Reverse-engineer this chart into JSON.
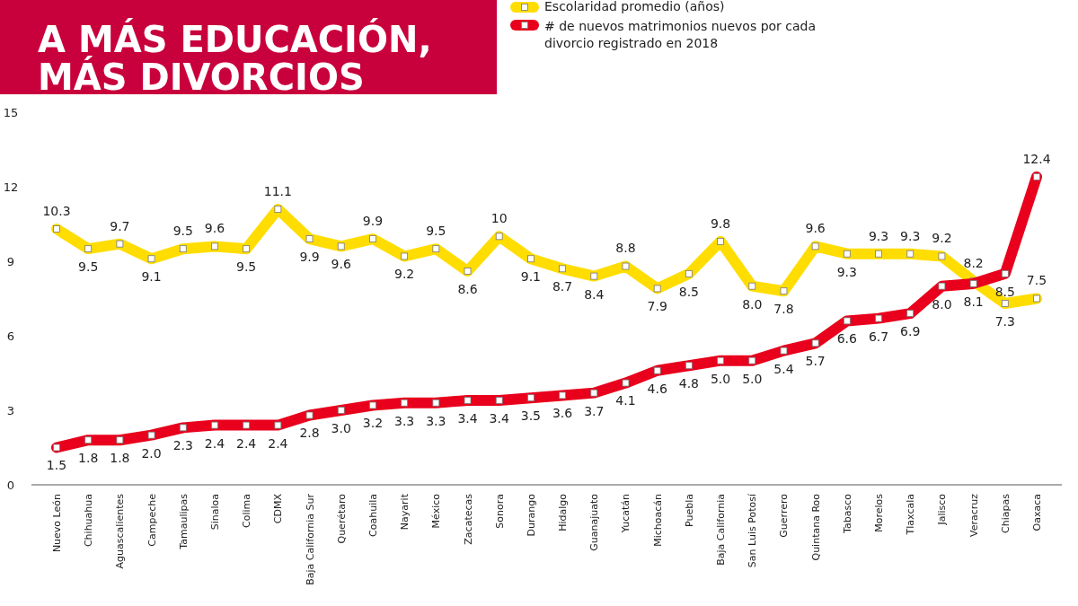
{
  "chart_data": {
    "type": "line",
    "title": "A MÁS EDUCACIÓN, MÁS DIVORCIOS",
    "categories": [
      "Nuevo León",
      "Chihuahua",
      "Aguascalientes",
      "Campeche",
      "Tamaulipas",
      "Sinaloa",
      "Colima",
      "CDMX",
      "Baja California Sur",
      "Querétaro",
      "Coahuila",
      "Nayarit",
      "México",
      "Zacatecas",
      "Sonora",
      "Durango",
      "Hidalgo",
      "Guanajuato",
      "Yucatán",
      "Michoacán",
      "Puebla",
      "Baja California",
      "San Luis Potosí",
      "Guerrero",
      "Quintana Roo",
      "Tabasco",
      "Morelos",
      "Tlaxcala",
      "Jalisco",
      "Veracruz",
      "Chiapas",
      "Oaxaca"
    ],
    "series": [
      {
        "name": "Escolaridad promedio (años)",
        "color": "#ffdd00",
        "values": [
          10.3,
          9.5,
          9.7,
          9.1,
          9.5,
          9.6,
          9.5,
          11.1,
          9.9,
          9.6,
          9.9,
          9.2,
          9.5,
          8.6,
          10,
          9.1,
          8.7,
          8.4,
          8.8,
          7.9,
          8.5,
          9.8,
          8.0,
          7.8,
          9.6,
          9.3,
          9.3,
          9.3,
          9.2,
          8.2,
          7.3,
          7.5
        ],
        "value_labels": [
          "10.3",
          "9.5",
          "9.7",
          "9.1",
          "9.5",
          "9.6",
          "9.5",
          "11.1",
          "9.9",
          "9.6",
          "9.9",
          "9.2",
          "9.5",
          "8.6",
          "10",
          "9.1",
          "8.7",
          "8.4",
          "8.8",
          "7.9",
          "8.5",
          "9.8",
          "8.0",
          "7.8",
          "9.6",
          "9.3",
          "9.3",
          "9.3",
          "9.2",
          "8.2",
          "7.3",
          "7.5"
        ]
      },
      {
        "name": "# de nuevos matrimonios nuevos por cada divorcio registrado en 2018",
        "color": "#e8001c",
        "values": [
          1.5,
          1.8,
          1.8,
          2.0,
          2.3,
          2.4,
          2.4,
          2.4,
          2.8,
          3.0,
          3.2,
          3.3,
          3.3,
          3.4,
          3.4,
          3.5,
          3.6,
          3.7,
          4.1,
          4.6,
          4.8,
          5.0,
          5.0,
          5.4,
          5.7,
          6.6,
          6.7,
          6.9,
          8.0,
          8.1,
          8.5,
          12.4
        ],
        "value_labels": [
          "1.5",
          "1.8",
          "1.8",
          "2.0",
          "2.3",
          "2.4",
          "2.4",
          "2.4",
          "2.8",
          "3.0",
          "3.2",
          "3.3",
          "3.3",
          "3.4",
          "3.4",
          "3.5",
          "3.6",
          "3.7",
          "4.1",
          "4.6",
          "4.8",
          "5.0",
          "5.0",
          "5.4",
          "5.7",
          "6.6",
          "6.7",
          "6.9",
          "8.0",
          "8.1",
          "8.5",
          "12.4"
        ]
      }
    ],
    "ylim": [
      0,
      15
    ],
    "yticks": [
      0,
      3,
      6,
      9,
      12,
      15
    ],
    "marker": "square",
    "legend": "top",
    "grid": false
  }
}
